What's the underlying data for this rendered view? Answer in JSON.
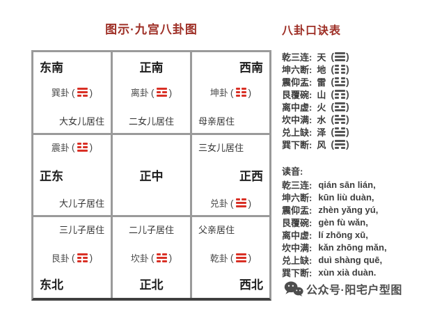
{
  "title": "图示·九宫八卦图",
  "colors": {
    "heading_red": "#9e2f26",
    "trigram_red": "#d93025",
    "grid_line_gray": "#9a9a9a",
    "text_dark": "#1c1c1c",
    "text_gray": "#4a4a4a"
  },
  "grid": {
    "paren_open": "(",
    "paren_close": ")",
    "cells": [
      {
        "key": "southeast",
        "direction": "东南",
        "gua": "巽卦",
        "trigram": [
          1,
          1,
          0
        ],
        "resident": "大女儿居住",
        "zones": [
          {
            "type": "direction",
            "align": "left"
          },
          {
            "type": "gua",
            "align": "center"
          },
          {
            "type": "resident",
            "align": "right"
          }
        ]
      },
      {
        "key": "south",
        "direction": "正南",
        "gua": "离卦",
        "trigram": [
          1,
          0,
          1
        ],
        "resident": "二女儿居住",
        "zones": [
          {
            "type": "direction",
            "align": "center"
          },
          {
            "type": "gua",
            "align": "center"
          },
          {
            "type": "resident",
            "align": "center"
          }
        ]
      },
      {
        "key": "southwest",
        "direction": "西南",
        "gua": "坤卦",
        "trigram": [
          0,
          0,
          0
        ],
        "resident": "母亲居住",
        "zones": [
          {
            "type": "direction",
            "align": "right"
          },
          {
            "type": "gua",
            "align": "center"
          },
          {
            "type": "resident",
            "align": "left"
          }
        ]
      },
      {
        "key": "east",
        "direction": "正东",
        "gua": "震卦",
        "trigram": [
          0,
          0,
          1
        ],
        "resident": "大儿子居住",
        "zones": [
          {
            "type": "gua",
            "align": "center"
          },
          {
            "type": "direction",
            "align": "left"
          },
          {
            "type": "resident",
            "align": "right"
          }
        ]
      },
      {
        "key": "center",
        "direction": "正中",
        "zones": [
          {
            "type": "none",
            "align": "center"
          },
          {
            "type": "direction",
            "align": "center"
          },
          {
            "type": "none",
            "align": "center"
          }
        ]
      },
      {
        "key": "west",
        "direction": "正西",
        "gua": "兑卦",
        "trigram": [
          0,
          1,
          1
        ],
        "resident": "三女儿居住",
        "zones": [
          {
            "type": "resident",
            "align": "left"
          },
          {
            "type": "direction",
            "align": "right"
          },
          {
            "type": "gua",
            "align": "center"
          }
        ]
      },
      {
        "key": "northeast",
        "direction": "东北",
        "gua": "艮卦",
        "trigram": [
          1,
          0,
          0
        ],
        "resident": "三儿子居住",
        "zones": [
          {
            "type": "resident",
            "align": "right"
          },
          {
            "type": "gua",
            "align": "center"
          },
          {
            "type": "direction",
            "align": "left"
          }
        ]
      },
      {
        "key": "north",
        "direction": "正北",
        "gua": "坎卦",
        "trigram": [
          0,
          1,
          0
        ],
        "resident": "二儿子居住",
        "zones": [
          {
            "type": "resident",
            "align": "center"
          },
          {
            "type": "gua",
            "align": "center"
          },
          {
            "type": "direction",
            "align": "center"
          }
        ]
      },
      {
        "key": "northwest",
        "direction": "西北",
        "gua": "乾卦",
        "trigram": [
          1,
          1,
          1
        ],
        "resident": "父亲居住",
        "zones": [
          {
            "type": "resident",
            "align": "left"
          },
          {
            "type": "gua",
            "align": "center"
          },
          {
            "type": "direction",
            "align": "right"
          }
        ]
      }
    ]
  },
  "right_panel": {
    "heading": "八卦口诀表",
    "mnemonics": [
      {
        "phrase": "乾三连:",
        "element": "天",
        "trigram": [
          1,
          1,
          1
        ]
      },
      {
        "phrase": "坤六断:",
        "element": "地",
        "trigram": [
          0,
          0,
          0
        ]
      },
      {
        "phrase": "震仰盂:",
        "element": "雷",
        "trigram": [
          0,
          0,
          1
        ]
      },
      {
        "phrase": "艮覆碗:",
        "element": "山",
        "trigram": [
          1,
          0,
          0
        ]
      },
      {
        "phrase": "离中虚:",
        "element": "火",
        "trigram": [
          1,
          0,
          1
        ]
      },
      {
        "phrase": "坎中满:",
        "element": "水",
        "trigram": [
          0,
          1,
          0
        ]
      },
      {
        "phrase": "兑上缺:",
        "element": "泽",
        "trigram": [
          0,
          1,
          1
        ]
      },
      {
        "phrase": "巽下断:",
        "element": "风",
        "trigram": [
          1,
          1,
          0
        ]
      }
    ],
    "pronunciation_heading": "读音:",
    "pronunciations": [
      {
        "label": "乾三连:",
        "pinyin": "qián sān lián,"
      },
      {
        "label": "坤六断:",
        "pinyin": "kūn liù duàn,"
      },
      {
        "label": "震仰盂:",
        "pinyin": "zhèn yǎng yú,"
      },
      {
        "label": "艮覆碗:",
        "pinyin": "gèn fù wǎn,"
      },
      {
        "label": "离中虚:",
        "pinyin": "lí zhōng xū,"
      },
      {
        "label": "坎中满:",
        "pinyin": "kǎn zhōng mǎn,"
      },
      {
        "label": "兑上缺:",
        "pinyin": "duì shàng quē,"
      },
      {
        "label": "巽下断:",
        "pinyin": "xùn xià duàn."
      }
    ]
  },
  "watermark": {
    "icon": "wechat-icon",
    "text": "公众号·阳宅户型图"
  }
}
